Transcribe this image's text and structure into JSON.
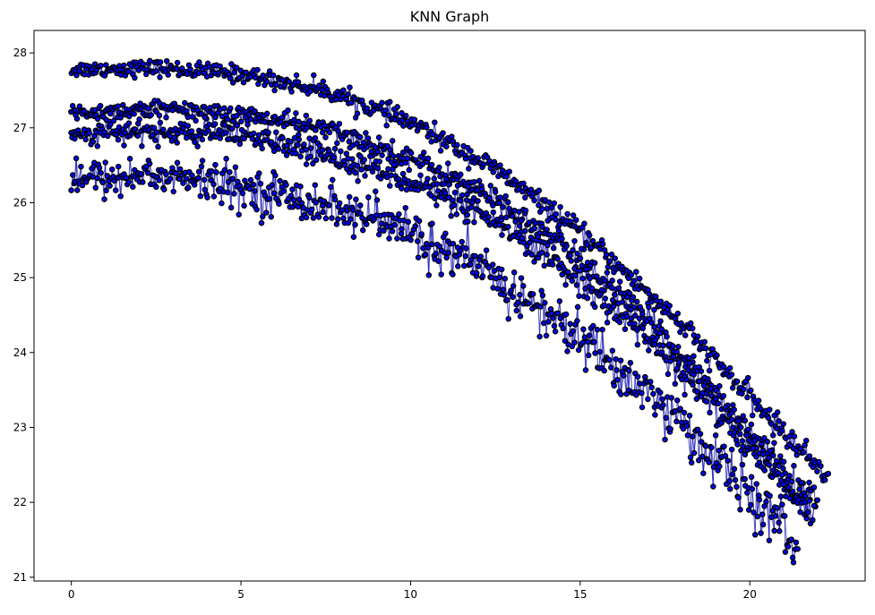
{
  "chart_data": {
    "type": "scatter",
    "title": "KNN Graph",
    "xlabel": "",
    "ylabel": "",
    "xlim": [
      -1.1,
      23.4
    ],
    "ylim": [
      20.95,
      28.3
    ],
    "x_ticks": [
      0,
      5,
      10,
      15,
      20
    ],
    "y_ticks": [
      21,
      22,
      23,
      24,
      25,
      26,
      27,
      28
    ],
    "x_tick_labels": [
      "0",
      "5",
      "10",
      "15",
      "20"
    ],
    "y_tick_labels": [
      "21",
      "22",
      "23",
      "24",
      "25",
      "26",
      "27",
      "28"
    ],
    "grid": false,
    "legend": "none",
    "marker_fill": "#0000ff",
    "marker_edge": "#000000",
    "edge_color": "#0000aa",
    "bands": [
      {
        "x": [
          0.0,
          2.5,
          5.0,
          7.5,
          10.0,
          12.5,
          15.0,
          17.5,
          20.0,
          21.5,
          22.3
        ],
        "y": [
          27.78,
          27.8,
          27.72,
          27.5,
          27.07,
          26.45,
          25.6,
          24.6,
          23.4,
          22.7,
          22.37
        ],
        "spread": 0.05,
        "x_end": 22.3
      },
      {
        "x": [
          0.0,
          2.5,
          5.0,
          7.5,
          10.0,
          12.5,
          15.0,
          17.5,
          20.0,
          21.3,
          22.0
        ],
        "y": [
          27.2,
          27.25,
          27.18,
          26.98,
          26.6,
          26.05,
          25.25,
          24.22,
          22.95,
          22.25,
          22.05
        ],
        "spread": 0.06,
        "x_end": 22.0
      },
      {
        "x": [
          0.0,
          2.5,
          5.0,
          7.5,
          10.0,
          12.5,
          15.0,
          17.5,
          20.0,
          21.2,
          21.9
        ],
        "y": [
          26.92,
          26.95,
          26.88,
          26.65,
          26.3,
          25.72,
          24.98,
          23.98,
          22.75,
          22.1,
          21.85
        ],
        "spread": 0.07,
        "x_end": 21.9
      },
      {
        "x": [
          0.0,
          2.5,
          5.0,
          7.5,
          10.0,
          12.5,
          15.0,
          17.5,
          19.5,
          20.5,
          21.4
        ],
        "y": [
          26.3,
          26.38,
          26.2,
          25.98,
          25.6,
          24.98,
          24.2,
          23.25,
          22.35,
          21.85,
          21.4
        ],
        "spread": 0.12,
        "x_end": 21.4
      }
    ]
  }
}
